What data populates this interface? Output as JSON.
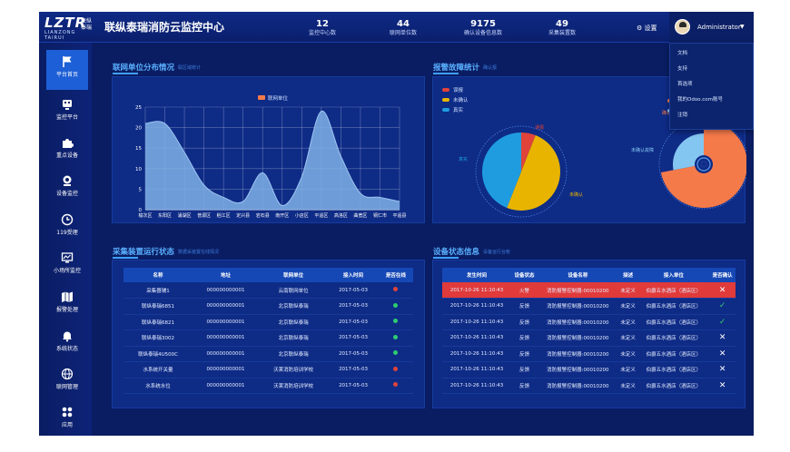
{
  "header": {
    "logo_text": "LZTR",
    "logo_sub": "LIANZONG TAIRUI",
    "logo_cn": "联纵泰瑞",
    "title": "联纵泰瑞消防云监控中心",
    "stats": [
      {
        "value": "12",
        "label": "监控中心数"
      },
      {
        "value": "44",
        "label": "联网单位数"
      },
      {
        "value": "9175",
        "label": "确认设备信息数"
      },
      {
        "value": "49",
        "label": "采集装置数"
      }
    ],
    "settings_label": "设置",
    "user_name": "Administrator"
  },
  "user_menu": [
    "文档",
    "支持",
    "首选项",
    "我的Odoo.com账号",
    "注销"
  ],
  "sidebar": [
    {
      "label": "平台首页",
      "icon": "flag-icon"
    },
    {
      "label": "监控平台",
      "icon": "monitor-icon"
    },
    {
      "label": "重点设备",
      "icon": "puzzle-icon"
    },
    {
      "label": "设备监控",
      "icon": "location-icon"
    },
    {
      "label": "119受理",
      "icon": "clock-icon"
    },
    {
      "label": "小场所监控",
      "icon": "display-icon"
    },
    {
      "label": "报警处理",
      "icon": "map-icon"
    },
    {
      "label": "系统状态",
      "icon": "bell-icon"
    },
    {
      "label": "联网管理",
      "icon": "globe-icon"
    },
    {
      "label": "应用",
      "icon": "apps-icon"
    }
  ],
  "panels": {
    "distribution": {
      "title": "联网单位分布情况",
      "subtitle": "联区域统计"
    },
    "alarms": {
      "title": "报警故障统计",
      "subtitle": "确认报"
    },
    "devices": {
      "title": "采集装置运行状态",
      "subtitle": "数据采装置在线情况"
    },
    "status": {
      "title": "设备状态信息",
      "subtitle": "设备运行台帐"
    }
  },
  "chart_data": [
    {
      "type": "area",
      "legend": [
        "联网单位"
      ],
      "categories": [
        "榆次区",
        "东阳区",
        "涌湖区",
        "普源区",
        "稻江区",
        "定兴县",
        "岩石县",
        "南开区",
        "小店区",
        "平遥区",
        "高洛区",
        "曲宽区",
        "铜仁市",
        "平遥县"
      ],
      "values": [
        21,
        21,
        14,
        6,
        3,
        2,
        9,
        1,
        8,
        24,
        13,
        4,
        3,
        2
      ],
      "ylim": [
        0,
        25
      ],
      "yticks": [
        0,
        5,
        10,
        15,
        20,
        25
      ],
      "colors": {
        "fill": "#7fb0e6",
        "line": "#9ec5f2"
      }
    },
    {
      "type": "pie",
      "legend": [
        "误报",
        "未确认",
        "真实"
      ],
      "slices": [
        {
          "label": "误报",
          "value": 6,
          "color": "#e0433a"
        },
        {
          "label": "未确认",
          "value": 50,
          "color": "#e8b400"
        },
        {
          "label": "真实",
          "value": 44,
          "color": "#1f9ce0"
        }
      ],
      "slice_labels": [
        "误报",
        "未确认",
        "真实"
      ]
    },
    {
      "type": "pie",
      "legend": [
        "确认故障",
        "未确认故障"
      ],
      "slices": [
        {
          "label": "确认故障",
          "value": 72,
          "color": "#f57a4a"
        },
        {
          "label": "未确认故障",
          "value": 28,
          "color": "#84c6f2"
        }
      ],
      "slice_labels": [
        "确认故障",
        "未确认故障"
      ]
    }
  ],
  "device_table": {
    "columns": [
      "名称",
      "地址",
      "联网单位",
      "接入时间",
      "是否在线"
    ],
    "rows": [
      {
        "cells": [
          "采集器辅1",
          "000000000001",
          "云南联网单位",
          "2017-05-03"
        ],
        "online": false
      },
      {
        "cells": [
          "联纵泰瑞6851",
          "000000000001",
          "北京联纵泰瑞",
          "2017-05-03"
        ],
        "online": true
      },
      {
        "cells": [
          "联纵泰瑞6821",
          "000000000001",
          "北京联纵泰瑞",
          "2017-05-03"
        ],
        "online": true
      },
      {
        "cells": [
          "联纵泰瑞3002",
          "000000000001",
          "北京联纵泰瑞",
          "2017-05-03"
        ],
        "online": true
      },
      {
        "cells": [
          "联纵泰瑞4U500C",
          "000000000001",
          "北京联纵泰瑞",
          "2017-05-03"
        ],
        "online": true
      },
      {
        "cells": [
          "水系统开关量",
          "000000000001",
          "沃莱消防培训学校",
          "2017-05-03"
        ],
        "online": false
      },
      {
        "cells": [
          "水系统水位",
          "000000000001",
          "沃莱消防培训学校",
          "2017-05-03"
        ],
        "online": false
      }
    ]
  },
  "status_table": {
    "columns": [
      "发生时间",
      "设备状态",
      "设备名称",
      "描述",
      "接入单位",
      "是否确认"
    ],
    "rows": [
      {
        "cells": [
          "2017-10-26 11:10:43",
          "火警",
          "消防报警控制器:00010200",
          "未定义",
          "伯爵五水酒店（酒店区）"
        ],
        "confirmed": false,
        "alert": true
      },
      {
        "cells": [
          "2017-10-26 11:10:43",
          "反馈",
          "消防报警控制器:00010200",
          "未定义",
          "伯爵五水酒店（酒店区）"
        ],
        "confirmed": true,
        "alert": false
      },
      {
        "cells": [
          "2017-10-26 11:10:43",
          "反馈",
          "消防报警控制器:00010200",
          "未定义",
          "伯爵五水酒店（酒店区）"
        ],
        "confirmed": true,
        "alert": false
      },
      {
        "cells": [
          "2017-10-26 11:10:43",
          "反馈",
          "消防报警控制器:00010200",
          "未定义",
          "伯爵五水酒店（酒店区）"
        ],
        "confirmed": false,
        "alert": false
      },
      {
        "cells": [
          "2017-10-26 11:10:43",
          "反馈",
          "消防报警控制器:00010200",
          "未定义",
          "伯爵五水酒店（酒店区）"
        ],
        "confirmed": false,
        "alert": false
      },
      {
        "cells": [
          "2017-10-26 11:10:43",
          "反馈",
          "消防报警控制器:00010200",
          "未定义",
          "伯爵五水酒店（酒店区）"
        ],
        "confirmed": false,
        "alert": false
      },
      {
        "cells": [
          "2017-10-26 11:10:43",
          "反馈",
          "消防报警控制器:00010200",
          "未定义",
          "伯爵五水酒店（酒店区）"
        ],
        "confirmed": false,
        "alert": false
      }
    ]
  },
  "colors": {
    "online": "#2ecc71",
    "offline": "#e0433a",
    "alert_row": "#e03a3a",
    "accent": "#3fa0ff"
  }
}
